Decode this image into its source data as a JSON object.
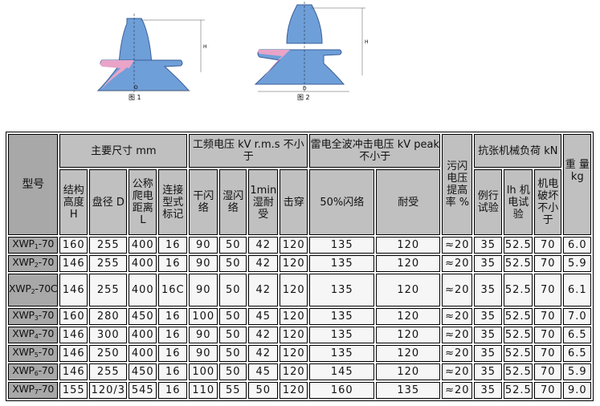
{
  "figures": [
    {
      "label": "图 1",
      "h": "H",
      "d": "D"
    },
    {
      "label": "图 2",
      "h": "H",
      "d": "D"
    }
  ],
  "colors": {
    "insulator": "#6f9fd8",
    "insert": "#e9a4c8",
    "header": "#c0c0c0",
    "model_col": "#a8a8a8"
  },
  "header": {
    "model": "型号",
    "dims": "主要尺寸 mm",
    "pf": "工频电压 kV r.m.s 不小于",
    "lightning": "雷电全波冲击电压 kV peak 不小于",
    "pollution": "污闪电压提高率 %",
    "mech": "抗张机械负荷 kN",
    "weight": "重 量 kg",
    "sub": {
      "H": "结构高度H",
      "D": "盘径 D",
      "L": "公称爬电距离L",
      "type": "连接型式标记",
      "dry": "干闪络",
      "wet": "湿闪络",
      "min": "1min湿耐受",
      "puncture": "击穿",
      "flash50": "50%闪络",
      "withstand": "耐受",
      "routine": "例行试验",
      "h1": "lh 机电试验",
      "mechfail": "机电破坏不小于"
    }
  },
  "rows": [
    {
      "model": "XWP",
      "sub": "1",
      "suffix": "-70",
      "v": [
        "160",
        "255",
        "400",
        "16",
        "90",
        "50",
        "42",
        "120",
        "135",
        "120",
        "≈20",
        "35",
        "52.5",
        "70",
        "6.0"
      ]
    },
    {
      "model": "XWP",
      "sub": "2",
      "suffix": "-70",
      "v": [
        "146",
        "255",
        "400",
        "16",
        "90",
        "50",
        "42",
        "120",
        "135",
        "120",
        "≈20",
        "35",
        "52.5",
        "70",
        "5.9"
      ]
    },
    {
      "model": "XWP",
      "sub": "2",
      "suffix": "-70C",
      "v": [
        "146",
        "255",
        "400",
        "16C",
        "90",
        "50",
        "42",
        "120",
        "135",
        "120",
        "≈20",
        "35",
        "52.5",
        "70",
        "6.1"
      ]
    },
    {
      "model": "XWP",
      "sub": "3",
      "suffix": "-70",
      "v": [
        "160",
        "280",
        "450",
        "16",
        "100",
        "50",
        "45",
        "120",
        "135",
        "120",
        "≈20",
        "35",
        "52.5",
        "70",
        "7.0"
      ]
    },
    {
      "model": "XWP",
      "sub": "4",
      "suffix": "-70",
      "v": [
        "146",
        "300",
        "400",
        "16",
        "90",
        "50",
        "42",
        "120",
        "135",
        "120",
        "≈20",
        "35",
        "52.5",
        "70",
        "6.5"
      ]
    },
    {
      "model": "XWP",
      "sub": "5",
      "suffix": "-70",
      "v": [
        "146",
        "250",
        "400",
        "16",
        "90",
        "50",
        "42",
        "120",
        "135",
        "120",
        "≈20",
        "35",
        "52.5",
        "70",
        "6.5"
      ]
    },
    {
      "model": "XWP",
      "sub": "6",
      "suffix": "-70",
      "v": [
        "146",
        "255",
        "450",
        "16",
        "100",
        "50",
        "45",
        "120",
        "145",
        "120",
        "≈20",
        "35",
        "52.5",
        "70",
        "5.9"
      ]
    },
    {
      "model": "XWP",
      "sub": "7",
      "suffix": "-70",
      "v": [
        "155",
        "120/3",
        "545",
        "16",
        "110",
        "55",
        "50",
        "120",
        "160",
        "135",
        "≈20",
        "35",
        "52.5",
        "70",
        "9.0"
      ]
    }
  ]
}
